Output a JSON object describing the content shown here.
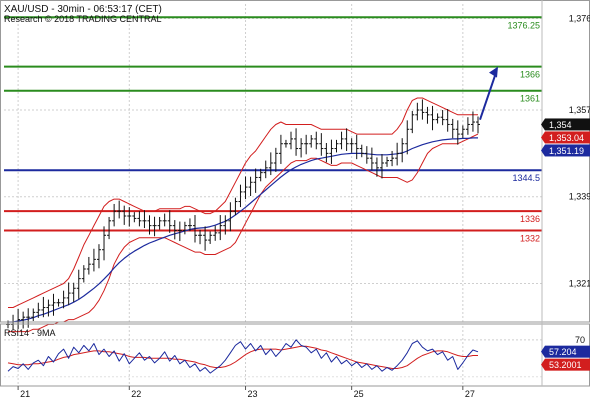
{
  "header": {
    "title": "XAU/USD - 30min - 06:53:17 (CET)",
    "copyright": "Research © 2018 TRADING CENTRAL"
  },
  "chart_data": [
    {
      "type": "candlestick",
      "title": "XAU/USD - 30min - 06:53:17 (CET)",
      "ylim": [
        1313,
        1379
      ],
      "y_ticks": [
        1376,
        1357,
        1339,
        1321
      ],
      "y_tick_labels": [
        "1,376",
        "1,357",
        "1,339",
        "1,321"
      ],
      "x_ticks": [
        21,
        22,
        23,
        25,
        27
      ],
      "x_tick_labels": [
        "21",
        "22",
        "23",
        "25",
        "27"
      ],
      "grid": true,
      "levels": [
        {
          "value": 1376.25,
          "label": "1376.25",
          "color": "#2a8c1e"
        },
        {
          "value": 1366,
          "label": "1366",
          "color": "#2a8c1e"
        },
        {
          "value": 1361,
          "label": "1361",
          "color": "#2a8c1e"
        },
        {
          "value": 1344.5,
          "label": "1344.5",
          "color": "#1c2a9e"
        },
        {
          "value": 1336,
          "label": "1336",
          "color": "#d21e1e"
        },
        {
          "value": 1332,
          "label": "1332",
          "color": "#d21e1e"
        }
      ],
      "price_tags": [
        {
          "value": 1354,
          "label": "1,354",
          "bg": "#111111",
          "fg": "#ffffff"
        },
        {
          "value": 1353.04,
          "label": "1,353.04",
          "bg": "#d21e1e",
          "fg": "#ffffff"
        },
        {
          "value": 1351.19,
          "label": "1,351.19",
          "bg": "#1c2a9e",
          "fg": "#ffffff"
        }
      ],
      "forecast_arrow": {
        "from": 1355,
        "to": 1366,
        "color": "#1c2a9e"
      },
      "indicators": [
        "Bollinger Bands",
        "Moving Average"
      ],
      "series": [
        {
          "name": "close",
          "values": [
            1312.5,
            1313,
            1313.5,
            1314,
            1314,
            1315,
            1315.5,
            1316,
            1316.5,
            1317,
            1317,
            1318,
            1319,
            1320,
            1322,
            1324,
            1325,
            1326,
            1328,
            1331,
            1334,
            1336,
            1336,
            1335,
            1335,
            1334.5,
            1334,
            1334,
            1333,
            1333,
            1334,
            1334,
            1333,
            1332,
            1332,
            1333,
            1333,
            1331,
            1331,
            1330,
            1331,
            1331.5,
            1333,
            1334,
            1336,
            1338,
            1340,
            1341,
            1342,
            1343,
            1344,
            1345,
            1346,
            1348,
            1350,
            1350,
            1351,
            1349,
            1350,
            1350,
            1351,
            1350,
            1349,
            1348,
            1349,
            1350,
            1351,
            1350,
            1350,
            1349,
            1348,
            1347,
            1346,
            1345,
            1346,
            1346.5,
            1347,
            1348,
            1350,
            1353,
            1356,
            1357,
            1356.5,
            1356,
            1355,
            1355.5,
            1355,
            1354,
            1353,
            1352,
            1353,
            1354,
            1354.5,
            1354
          ]
        },
        {
          "name": "moving_average",
          "values": [
            1313,
            1313,
            1313.2,
            1313.4,
            1313.6,
            1313.9,
            1314.3,
            1314.6,
            1315,
            1315.4,
            1315.8,
            1316.2,
            1316.6,
            1317.1,
            1317.7,
            1318.4,
            1319.2,
            1320,
            1320.9,
            1321.9,
            1323,
            1324.2,
            1325.3,
            1326.2,
            1327,
            1327.7,
            1328.3,
            1328.9,
            1329.4,
            1329.8,
            1330.2,
            1330.6,
            1331,
            1331.3,
            1331.6,
            1331.9,
            1332.2,
            1332.4,
            1332.5,
            1332.6,
            1332.8,
            1333.1,
            1333.5,
            1333.9,
            1334.5,
            1335.2,
            1336,
            1336.8,
            1337.7,
            1338.6,
            1339.5,
            1340.4,
            1341.3,
            1342.2,
            1343.1,
            1343.9,
            1344.6,
            1345.2,
            1345.7,
            1346.1,
            1346.5,
            1346.8,
            1347,
            1347.2,
            1347.4,
            1347.6,
            1347.8,
            1347.9,
            1348,
            1348,
            1348,
            1347.9,
            1347.8,
            1347.7,
            1347.7,
            1347.7,
            1347.8,
            1347.9,
            1348.1,
            1348.5,
            1349,
            1349.4,
            1349.8,
            1350.1,
            1350.4,
            1350.6,
            1350.8,
            1350.9,
            1351,
            1351,
            1351.1,
            1351.1,
            1351.2,
            1351.2
          ]
        },
        {
          "name": "bollinger_upper",
          "values": [
            1316,
            1316,
            1316.5,
            1317,
            1317.5,
            1318,
            1318.5,
            1319,
            1319.5,
            1320,
            1320.5,
            1321,
            1322,
            1324,
            1326.5,
            1329,
            1331,
            1333,
            1335,
            1337,
            1338,
            1338.5,
            1338.5,
            1338,
            1337.5,
            1337,
            1336.5,
            1336,
            1336,
            1336,
            1336.5,
            1336.5,
            1336.5,
            1336.5,
            1336.5,
            1337,
            1337,
            1336.5,
            1336,
            1335.5,
            1335.5,
            1336,
            1337,
            1338,
            1340,
            1342,
            1344,
            1346,
            1347.5,
            1348.5,
            1350,
            1351.5,
            1353,
            1354,
            1354.5,
            1354,
            1354,
            1354,
            1354,
            1354,
            1354,
            1353.5,
            1353,
            1353,
            1353,
            1353,
            1353,
            1353,
            1352.5,
            1352,
            1352,
            1352,
            1352,
            1352,
            1352,
            1352,
            1352,
            1353,
            1354.5,
            1357,
            1359,
            1359.5,
            1359.5,
            1359,
            1358.5,
            1358,
            1357.5,
            1357,
            1356.5,
            1356,
            1356,
            1356,
            1356,
            1356
          ]
        },
        {
          "name": "bollinger_lower",
          "values": [
            1311,
            1311,
            1311,
            1311,
            1311,
            1311.5,
            1311.5,
            1312,
            1312.5,
            1312.5,
            1313,
            1313,
            1313.5,
            1313.5,
            1314,
            1314.5,
            1315,
            1316,
            1317.5,
            1319.5,
            1322,
            1325,
            1327,
            1328.5,
            1329.5,
            1330,
            1330.5,
            1330.5,
            1330.5,
            1330.5,
            1330.5,
            1330.5,
            1330,
            1329.5,
            1329,
            1328.5,
            1328,
            1327.5,
            1327.5,
            1327,
            1327,
            1327,
            1327.5,
            1328,
            1328.5,
            1329.5,
            1331.5,
            1333.5,
            1335.5,
            1337.5,
            1339.5,
            1341,
            1342,
            1343,
            1344,
            1345,
            1346,
            1346.5,
            1346.5,
            1346.5,
            1347,
            1347,
            1346.5,
            1346,
            1345.5,
            1345.5,
            1346,
            1346,
            1346,
            1345.5,
            1345,
            1344.5,
            1344,
            1343.5,
            1343,
            1343,
            1343,
            1343,
            1342.5,
            1342,
            1342.5,
            1344,
            1346,
            1348,
            1349,
            1349.5,
            1350,
            1350,
            1350,
            1350,
            1350.5,
            1351,
            1351.5,
            1352
          ]
        }
      ]
    },
    {
      "type": "line",
      "title": "RSI14 - 9MA",
      "ylim": [
        20,
        85
      ],
      "y_ticks": [
        70
      ],
      "y_tick_labels": [
        "70"
      ],
      "grid": true,
      "price_tags": [
        {
          "value": 57.204,
          "label": "57.204",
          "bg": "#1c2a9e",
          "fg": "#ffffff"
        },
        {
          "value": 53.2001,
          "label": "53.2001",
          "bg": "#d21e1e",
          "fg": "#ffffff"
        }
      ],
      "series": [
        {
          "name": "RSI14",
          "values": [
            36,
            41,
            39,
            44,
            38,
            45,
            48,
            42,
            52,
            46,
            55,
            60,
            50,
            62,
            56,
            64,
            58,
            66,
            54,
            60,
            52,
            58,
            47,
            55,
            44,
            50,
            56,
            48,
            52,
            45,
            50,
            57,
            47,
            53,
            44,
            48,
            40,
            44,
            36,
            40,
            34,
            38,
            42,
            48,
            56,
            64,
            68,
            60,
            66,
            58,
            64,
            54,
            60,
            52,
            58,
            66,
            62,
            70,
            64,
            62,
            56,
            60,
            50,
            56,
            46,
            52,
            44,
            48,
            42,
            46,
            40,
            44,
            38,
            42,
            36,
            40,
            37,
            42,
            48,
            56,
            66,
            69,
            62,
            58,
            60,
            54,
            57,
            48,
            52,
            38,
            45,
            53,
            59,
            57
          ]
        },
        {
          "name": "RSI 9MA",
          "values": [
            45,
            44,
            43,
            43,
            43,
            44,
            44,
            45,
            46,
            47,
            49,
            51,
            52,
            54,
            55,
            56,
            57,
            58,
            58,
            57,
            57,
            56,
            55,
            54,
            52,
            51,
            51,
            51,
            50,
            50,
            50,
            50,
            50,
            49,
            49,
            48,
            47,
            46,
            44,
            43,
            41,
            40,
            40,
            41,
            43,
            46,
            50,
            54,
            57,
            59,
            60,
            60,
            60,
            60,
            59,
            60,
            61,
            62,
            63,
            63,
            62,
            61,
            59,
            58,
            56,
            54,
            52,
            50,
            48,
            46,
            45,
            44,
            43,
            42,
            41,
            40,
            39,
            39,
            40,
            42,
            46,
            50,
            53,
            55,
            57,
            58,
            58,
            57,
            55,
            53,
            52,
            52,
            53,
            53
          ]
        }
      ]
    }
  ]
}
